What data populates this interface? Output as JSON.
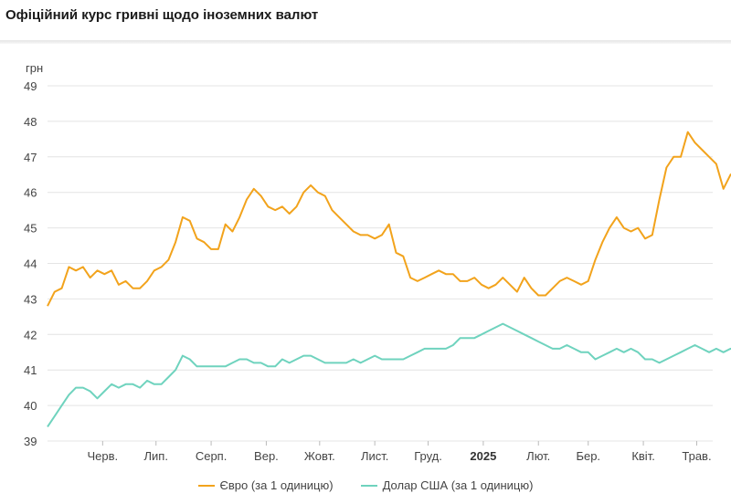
{
  "title": "Офіційний курс гривні щодо іноземних валют",
  "chart_data": {
    "type": "line",
    "title": "Офіційний курс гривні щодо іноземних валют",
    "ylabel": "грн",
    "ylim": [
      39,
      49
    ],
    "yticks": [
      39,
      40,
      41,
      42,
      43,
      44,
      45,
      46,
      47,
      48,
      49
    ],
    "grid": true,
    "legend_position": "bottom",
    "xlim": [
      "2024-05-01",
      "2025-05-10"
    ],
    "xticks": [
      {
        "label": "Черв.",
        "date": "2024-06-01",
        "bold": false
      },
      {
        "label": "Лип.",
        "date": "2024-07-01",
        "bold": false
      },
      {
        "label": "Серп.",
        "date": "2024-08-01",
        "bold": false
      },
      {
        "label": "Вер.",
        "date": "2024-09-01",
        "bold": false
      },
      {
        "label": "Жовт.",
        "date": "2024-10-01",
        "bold": false
      },
      {
        "label": "Лист.",
        "date": "2024-11-01",
        "bold": false
      },
      {
        "label": "Груд.",
        "date": "2024-12-01",
        "bold": false
      },
      {
        "label": "2025",
        "date": "2025-01-01",
        "bold": true
      },
      {
        "label": "Лют.",
        "date": "2025-02-01",
        "bold": false
      },
      {
        "label": "Бер.",
        "date": "2025-03-01",
        "bold": false
      },
      {
        "label": "Квіт.",
        "date": "2025-04-01",
        "bold": false
      },
      {
        "label": "Трав.",
        "date": "2025-05-01",
        "bold": false
      }
    ],
    "series": [
      {
        "name": "Євро (за 1 одиницю)",
        "color": "#f2a31c",
        "points": [
          [
            "2024-05-01",
            42.8
          ],
          [
            "2024-05-05",
            43.2
          ],
          [
            "2024-05-09",
            43.3
          ],
          [
            "2024-05-13",
            43.9
          ],
          [
            "2024-05-17",
            43.8
          ],
          [
            "2024-05-21",
            43.9
          ],
          [
            "2024-05-25",
            43.6
          ],
          [
            "2024-05-29",
            43.8
          ],
          [
            "2024-06-02",
            43.7
          ],
          [
            "2024-06-06",
            43.8
          ],
          [
            "2024-06-10",
            43.4
          ],
          [
            "2024-06-14",
            43.5
          ],
          [
            "2024-06-18",
            43.3
          ],
          [
            "2024-06-22",
            43.3
          ],
          [
            "2024-06-26",
            43.5
          ],
          [
            "2024-06-30",
            43.8
          ],
          [
            "2024-07-04",
            43.9
          ],
          [
            "2024-07-08",
            44.1
          ],
          [
            "2024-07-12",
            44.6
          ],
          [
            "2024-07-16",
            45.3
          ],
          [
            "2024-07-20",
            45.2
          ],
          [
            "2024-07-24",
            44.7
          ],
          [
            "2024-07-28",
            44.6
          ],
          [
            "2024-08-01",
            44.4
          ],
          [
            "2024-08-05",
            44.4
          ],
          [
            "2024-08-09",
            45.1
          ],
          [
            "2024-08-13",
            44.9
          ],
          [
            "2024-08-17",
            45.3
          ],
          [
            "2024-08-21",
            45.8
          ],
          [
            "2024-08-25",
            46.1
          ],
          [
            "2024-08-29",
            45.9
          ],
          [
            "2024-09-02",
            45.6
          ],
          [
            "2024-09-06",
            45.5
          ],
          [
            "2024-09-10",
            45.6
          ],
          [
            "2024-09-14",
            45.4
          ],
          [
            "2024-09-18",
            45.6
          ],
          [
            "2024-09-22",
            46.0
          ],
          [
            "2024-09-26",
            46.2
          ],
          [
            "2024-09-30",
            46.0
          ],
          [
            "2024-10-04",
            45.9
          ],
          [
            "2024-10-08",
            45.5
          ],
          [
            "2024-10-12",
            45.3
          ],
          [
            "2024-10-16",
            45.1
          ],
          [
            "2024-10-20",
            44.9
          ],
          [
            "2024-10-24",
            44.8
          ],
          [
            "2024-10-28",
            44.8
          ],
          [
            "2024-11-01",
            44.7
          ],
          [
            "2024-11-05",
            44.8
          ],
          [
            "2024-11-09",
            45.1
          ],
          [
            "2024-11-13",
            44.3
          ],
          [
            "2024-11-17",
            44.2
          ],
          [
            "2024-11-21",
            43.6
          ],
          [
            "2024-11-25",
            43.5
          ],
          [
            "2024-11-29",
            43.6
          ],
          [
            "2024-12-03",
            43.7
          ],
          [
            "2024-12-07",
            43.8
          ],
          [
            "2024-12-11",
            43.7
          ],
          [
            "2024-12-15",
            43.7
          ],
          [
            "2024-12-19",
            43.5
          ],
          [
            "2024-12-23",
            43.5
          ],
          [
            "2024-12-27",
            43.6
          ],
          [
            "2024-12-31",
            43.4
          ],
          [
            "2025-01-04",
            43.3
          ],
          [
            "2025-01-08",
            43.4
          ],
          [
            "2025-01-12",
            43.6
          ],
          [
            "2025-01-16",
            43.4
          ],
          [
            "2025-01-20",
            43.2
          ],
          [
            "2025-01-24",
            43.6
          ],
          [
            "2025-01-28",
            43.3
          ],
          [
            "2025-02-01",
            43.1
          ],
          [
            "2025-02-05",
            43.1
          ],
          [
            "2025-02-09",
            43.3
          ],
          [
            "2025-02-13",
            43.5
          ],
          [
            "2025-02-17",
            43.6
          ],
          [
            "2025-02-21",
            43.5
          ],
          [
            "2025-02-25",
            43.4
          ],
          [
            "2025-03-01",
            43.5
          ],
          [
            "2025-03-05",
            44.1
          ],
          [
            "2025-03-09",
            44.6
          ],
          [
            "2025-03-13",
            45.0
          ],
          [
            "2025-03-17",
            45.3
          ],
          [
            "2025-03-21",
            45.0
          ],
          [
            "2025-03-25",
            44.9
          ],
          [
            "2025-03-29",
            45.0
          ],
          [
            "2025-04-02",
            44.7
          ],
          [
            "2025-04-06",
            44.8
          ],
          [
            "2025-04-10",
            45.8
          ],
          [
            "2025-04-14",
            46.7
          ],
          [
            "2025-04-18",
            47.0
          ],
          [
            "2025-04-22",
            47.0
          ],
          [
            "2025-04-26",
            47.7
          ],
          [
            "2025-04-30",
            47.4
          ],
          [
            "2025-05-04",
            47.2
          ],
          [
            "2025-05-08",
            47.0
          ],
          [
            "2025-05-12",
            46.8
          ],
          [
            "2025-05-16",
            46.1
          ],
          [
            "2025-05-20",
            46.5
          ],
          [
            "2025-05-24",
            46.6
          ],
          [
            "2025-05-28",
            46.8
          ]
        ]
      },
      {
        "name": "Долар США (за 1 одиницю)",
        "color": "#6fd3be",
        "points": [
          [
            "2024-05-01",
            39.4
          ],
          [
            "2024-05-05",
            39.7
          ],
          [
            "2024-05-09",
            40.0
          ],
          [
            "2024-05-13",
            40.3
          ],
          [
            "2024-05-17",
            40.5
          ],
          [
            "2024-05-21",
            40.5
          ],
          [
            "2024-05-25",
            40.4
          ],
          [
            "2024-05-29",
            40.2
          ],
          [
            "2024-06-02",
            40.4
          ],
          [
            "2024-06-06",
            40.6
          ],
          [
            "2024-06-10",
            40.5
          ],
          [
            "2024-06-14",
            40.6
          ],
          [
            "2024-06-18",
            40.6
          ],
          [
            "2024-06-22",
            40.5
          ],
          [
            "2024-06-26",
            40.7
          ],
          [
            "2024-06-30",
            40.6
          ],
          [
            "2024-07-04",
            40.6
          ],
          [
            "2024-07-08",
            40.8
          ],
          [
            "2024-07-12",
            41.0
          ],
          [
            "2024-07-16",
            41.4
          ],
          [
            "2024-07-20",
            41.3
          ],
          [
            "2024-07-24",
            41.1
          ],
          [
            "2024-07-28",
            41.1
          ],
          [
            "2024-08-01",
            41.1
          ],
          [
            "2024-08-05",
            41.1
          ],
          [
            "2024-08-09",
            41.1
          ],
          [
            "2024-08-13",
            41.2
          ],
          [
            "2024-08-17",
            41.3
          ],
          [
            "2024-08-21",
            41.3
          ],
          [
            "2024-08-25",
            41.2
          ],
          [
            "2024-08-29",
            41.2
          ],
          [
            "2024-09-02",
            41.1
          ],
          [
            "2024-09-06",
            41.1
          ],
          [
            "2024-09-10",
            41.3
          ],
          [
            "2024-09-14",
            41.2
          ],
          [
            "2024-09-18",
            41.3
          ],
          [
            "2024-09-22",
            41.4
          ],
          [
            "2024-09-26",
            41.4
          ],
          [
            "2024-09-30",
            41.3
          ],
          [
            "2024-10-04",
            41.2
          ],
          [
            "2024-10-08",
            41.2
          ],
          [
            "2024-10-12",
            41.2
          ],
          [
            "2024-10-16",
            41.2
          ],
          [
            "2024-10-20",
            41.3
          ],
          [
            "2024-10-24",
            41.2
          ],
          [
            "2024-10-28",
            41.3
          ],
          [
            "2024-11-01",
            41.4
          ],
          [
            "2024-11-05",
            41.3
          ],
          [
            "2024-11-09",
            41.3
          ],
          [
            "2024-11-13",
            41.3
          ],
          [
            "2024-11-17",
            41.3
          ],
          [
            "2024-11-21",
            41.4
          ],
          [
            "2024-11-25",
            41.5
          ],
          [
            "2024-11-29",
            41.6
          ],
          [
            "2024-12-03",
            41.6
          ],
          [
            "2024-12-07",
            41.6
          ],
          [
            "2024-12-11",
            41.6
          ],
          [
            "2024-12-15",
            41.7
          ],
          [
            "2024-12-19",
            41.9
          ],
          [
            "2024-12-23",
            41.9
          ],
          [
            "2024-12-27",
            41.9
          ],
          [
            "2024-12-31",
            42.0
          ],
          [
            "2025-01-04",
            42.1
          ],
          [
            "2025-01-08",
            42.2
          ],
          [
            "2025-01-12",
            42.3
          ],
          [
            "2025-01-16",
            42.2
          ],
          [
            "2025-01-20",
            42.1
          ],
          [
            "2025-01-24",
            42.0
          ],
          [
            "2025-01-28",
            41.9
          ],
          [
            "2025-02-01",
            41.8
          ],
          [
            "2025-02-05",
            41.7
          ],
          [
            "2025-02-09",
            41.6
          ],
          [
            "2025-02-13",
            41.6
          ],
          [
            "2025-02-17",
            41.7
          ],
          [
            "2025-02-21",
            41.6
          ],
          [
            "2025-02-25",
            41.5
          ],
          [
            "2025-03-01",
            41.5
          ],
          [
            "2025-03-05",
            41.3
          ],
          [
            "2025-03-09",
            41.4
          ],
          [
            "2025-03-13",
            41.5
          ],
          [
            "2025-03-17",
            41.6
          ],
          [
            "2025-03-21",
            41.5
          ],
          [
            "2025-03-25",
            41.6
          ],
          [
            "2025-03-29",
            41.5
          ],
          [
            "2025-04-02",
            41.3
          ],
          [
            "2025-04-06",
            41.3
          ],
          [
            "2025-04-10",
            41.2
          ],
          [
            "2025-04-14",
            41.3
          ],
          [
            "2025-04-18",
            41.4
          ],
          [
            "2025-04-22",
            41.5
          ],
          [
            "2025-04-26",
            41.6
          ],
          [
            "2025-04-30",
            41.7
          ],
          [
            "2025-05-04",
            41.6
          ],
          [
            "2025-05-08",
            41.5
          ],
          [
            "2025-05-12",
            41.6
          ],
          [
            "2025-05-16",
            41.5
          ],
          [
            "2025-05-20",
            41.6
          ],
          [
            "2025-05-24",
            41.5
          ],
          [
            "2025-05-28",
            41.5
          ]
        ]
      }
    ]
  }
}
